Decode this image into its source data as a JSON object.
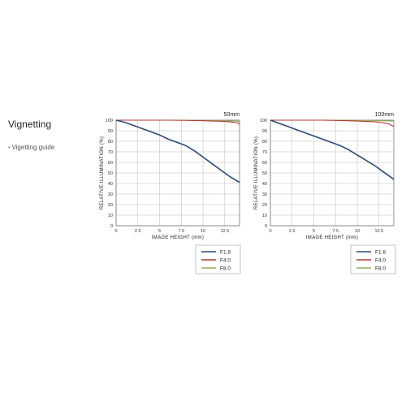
{
  "section": {
    "title": "Vignetting",
    "guide_link": "Vigetting guide"
  },
  "colors": {
    "F1.8": "#2b4a7a",
    "F4.0": "#b23a33",
    "F8.0": "#8fb05a",
    "grid": "#bbbbbb",
    "frame": "#666666"
  },
  "chart_data": [
    {
      "type": "line",
      "focal_length": "50mm",
      "xlabel": "IMAGE HEIGHT (mm)",
      "ylabel": "RELATIVE ILLUMINATION (%)",
      "xlim": [
        0,
        14.2
      ],
      "ylim": [
        0,
        100
      ],
      "xticks": [
        0,
        2.5,
        5,
        7.5,
        10,
        12.5
      ],
      "xtick_labels": [
        "0",
        "2.5",
        "5",
        "7.5",
        "10",
        "12.5"
      ],
      "yticks": [
        0,
        10,
        20,
        30,
        40,
        50,
        60,
        70,
        80,
        90,
        100
      ],
      "ytick_labels": [
        "0",
        "10",
        "20",
        "30",
        "40",
        "50",
        "60",
        "70",
        "80",
        "90",
        "100"
      ],
      "grid": true,
      "legend_position": "below-right",
      "series": [
        {
          "name": "F1.8",
          "x": [
            0,
            1,
            2,
            3,
            4,
            5,
            6,
            7,
            8,
            9,
            10,
            11,
            12,
            13,
            14.2
          ],
          "values": [
            100,
            98,
            95,
            92,
            89,
            86,
            82,
            79,
            76,
            71,
            65,
            59,
            53,
            47,
            41
          ]
        },
        {
          "name": "F4.0",
          "x": [
            0,
            2,
            4,
            6,
            8,
            10,
            12,
            13,
            14,
            14.2
          ],
          "values": [
            100,
            100,
            100,
            100,
            99.8,
            99.5,
            99,
            98.5,
            97.5,
            96
          ]
        },
        {
          "name": "F8.0",
          "x": [
            0,
            2,
            4,
            6,
            8,
            10,
            12,
            14,
            14.2
          ],
          "values": [
            100,
            100,
            100,
            100,
            100,
            99.8,
            99.5,
            99,
            98.7
          ]
        }
      ]
    },
    {
      "type": "line",
      "focal_length": "100mm",
      "xlabel": "IMAGE HEIGHT (mm)",
      "ylabel": "RELATIVE ILLUMINATION (%)",
      "xlim": [
        0,
        14.2
      ],
      "ylim": [
        0,
        100
      ],
      "xticks": [
        0,
        2.5,
        5,
        7.5,
        10,
        12.5
      ],
      "xtick_labels": [
        "0",
        "2.5",
        "5",
        "7.5",
        "10",
        "12.5"
      ],
      "yticks": [
        0,
        10,
        20,
        30,
        40,
        50,
        60,
        70,
        80,
        90,
        100
      ],
      "ytick_labels": [
        "0",
        "10",
        "20",
        "30",
        "40",
        "50",
        "60",
        "70",
        "80",
        "90",
        "100"
      ],
      "grid": true,
      "legend_position": "below-right",
      "series": [
        {
          "name": "F1.8",
          "x": [
            0,
            1,
            2,
            3,
            4,
            5,
            6,
            7,
            8,
            9,
            10,
            11,
            12,
            13,
            14.2
          ],
          "values": [
            100,
            97,
            94,
            91,
            88,
            85,
            82,
            79,
            76,
            72,
            67,
            62,
            57,
            51,
            44
          ]
        },
        {
          "name": "F4.0",
          "x": [
            0,
            2,
            4,
            6,
            8,
            10,
            12,
            13,
            13.6,
            14.2
          ],
          "values": [
            100,
            100,
            100,
            100,
            99.7,
            99.2,
            98.5,
            97.5,
            96.5,
            94
          ]
        },
        {
          "name": "F8.0",
          "x": [
            0,
            2,
            4,
            6,
            8,
            10,
            12,
            14,
            14.2
          ],
          "values": [
            100,
            100,
            100,
            100,
            100,
            99.8,
            99.6,
            99.2,
            99
          ]
        }
      ]
    }
  ]
}
